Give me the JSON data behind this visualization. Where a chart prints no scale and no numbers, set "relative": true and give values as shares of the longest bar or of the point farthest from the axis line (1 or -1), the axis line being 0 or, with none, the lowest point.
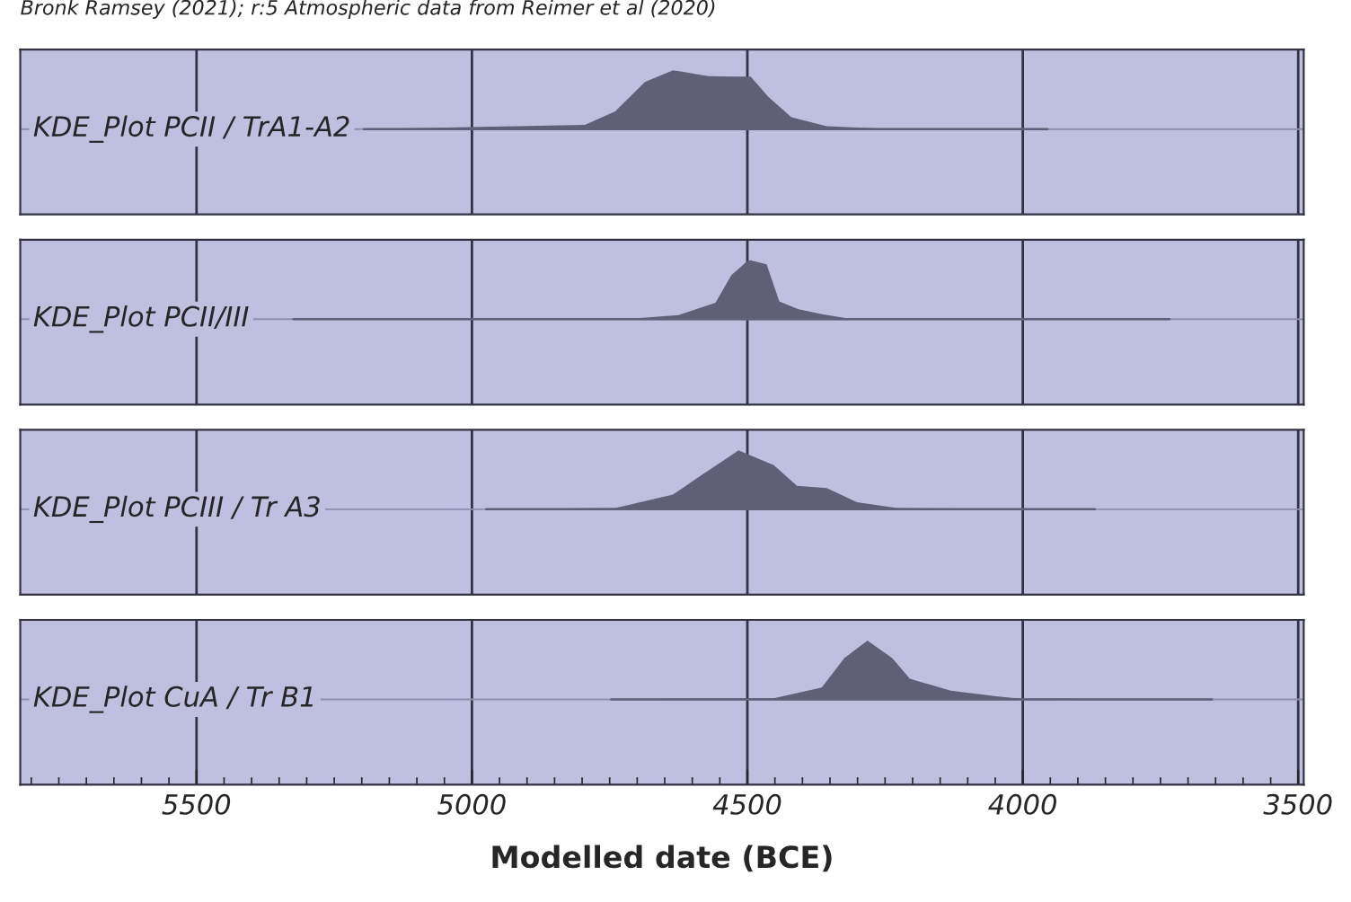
{
  "chart_data": [
    {
      "type": "area",
      "relative": true,
      "title": "Bronk Ramsey (2021); r:5 Atmospheric data from Reimer et al (2020)",
      "xlim": [
        5820,
        3490
      ],
      "xticks": [
        5500,
        5000,
        4500,
        4000,
        3500
      ],
      "tick_labels": false,
      "grid": "x",
      "series": [
        {
          "name": "KDE_Plot PCII / TrA1-A2",
          "color": "#5f6078",
          "x": [
            5196,
            4795,
            4740,
            4686,
            4635,
            4571,
            4526,
            4494,
            4462,
            4420,
            4356,
            4260,
            3955
          ],
          "values": [
            0,
            0.07,
            0.3,
            0.8,
            1,
            0.9,
            0.89,
            0.89,
            0.55,
            0.2,
            0.05,
            0.01,
            0
          ]
        }
      ]
    },
    {
      "type": "area",
      "relative": true,
      "xlim": [
        5820,
        3490
      ],
      "xticks": [
        5500,
        5000,
        4500,
        4000,
        3500
      ],
      "tick_labels": false,
      "grid": "x",
      "series": [
        {
          "name": "KDE_Plot PCII/III",
          "color": "#5f6078",
          "x": [
            5324,
            4696,
            4625,
            4558,
            4529,
            4500,
            4494,
            4465,
            4442,
            4407,
            4362,
            4317,
            3734
          ],
          "values": [
            0,
            0.02,
            0.07,
            0.28,
            0.75,
            0.99,
            1,
            0.93,
            0.3,
            0.17,
            0.08,
            0.01,
            0
          ]
        }
      ]
    },
    {
      "type": "area",
      "relative": true,
      "xlim": [
        5820,
        3490
      ],
      "xticks": [
        5500,
        5000,
        4500,
        4000,
        3500
      ],
      "tick_labels": false,
      "grid": "x",
      "series": [
        {
          "name": "KDE_Plot PCIII / Tr A3",
          "color": "#5f6078",
          "x": [
            4974,
            4740,
            4635,
            4580,
            4516,
            4452,
            4410,
            4356,
            4301,
            4228,
            3869
          ],
          "values": [
            0,
            0.02,
            0.25,
            0.6,
            1,
            0.75,
            0.4,
            0.36,
            0.12,
            0.02,
            0
          ]
        }
      ]
    },
    {
      "type": "area",
      "relative": true,
      "xlabel": "Modelled date (BCE)",
      "xlim": [
        5820,
        3490
      ],
      "xticks": [
        5500,
        5000,
        4500,
        4000,
        3500
      ],
      "tick_labels": "x",
      "grid": "x",
      "series": [
        {
          "name": "KDE_Plot CuA / Tr B1",
          "color": "#5f6078",
          "x": [
            4747,
            4452,
            4365,
            4324,
            4282,
            4237,
            4205,
            4131,
            4045,
            4003,
            3657
          ],
          "values": [
            0,
            0.02,
            0.2,
            0.7,
            1,
            0.7,
            0.35,
            0.15,
            0.05,
            0.01,
            0
          ]
        }
      ]
    }
  ]
}
